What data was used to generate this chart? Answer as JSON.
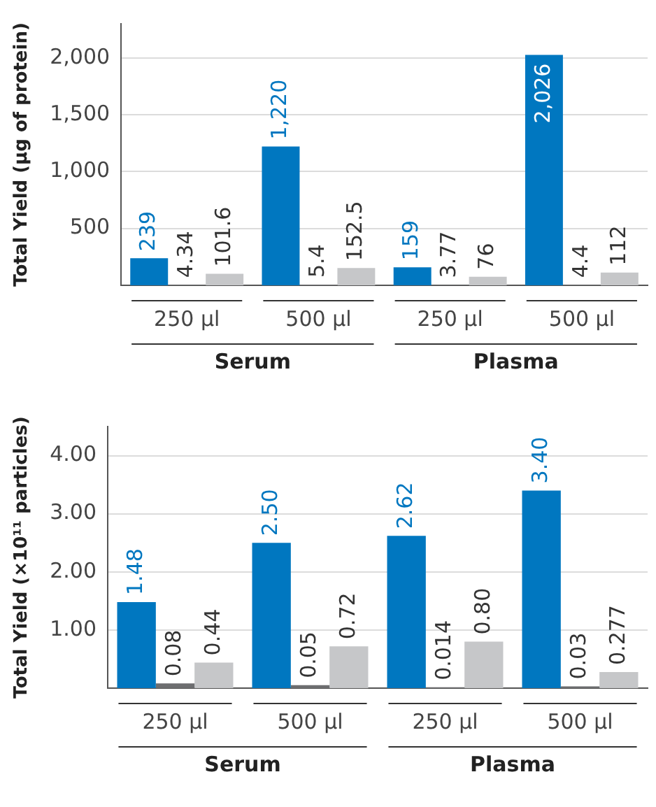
{
  "chart_data": [
    {
      "type": "bar",
      "ylabel": "Total Yield (µg of protein)",
      "categories": [
        "250 µl",
        "500 µl",
        "250 µl",
        "500 µl"
      ],
      "series": [
        {
          "color": "#0077c0",
          "values": [
            239,
            1220,
            159,
            2026
          ],
          "value_labels": [
            "239",
            "1,220",
            "159",
            "2,026"
          ]
        },
        {
          "color": "#6d6e70",
          "values": [
            4.34,
            5.4,
            3.77,
            4.4
          ],
          "value_labels": [
            "4.34",
            "5.4",
            "3.77",
            "4.4"
          ]
        },
        {
          "color": "#c6c7c9",
          "values": [
            101.6,
            152.5,
            76,
            112
          ],
          "value_labels": [
            "101.6",
            "152.5",
            "76",
            "112"
          ]
        }
      ],
      "ylim": [
        0,
        2300
      ],
      "yticks": [
        {
          "value": 500,
          "label": "500"
        },
        {
          "value": 1000,
          "label": "1,000"
        },
        {
          "value": 1500,
          "label": "1,500"
        },
        {
          "value": 2000,
          "label": "2,000"
        }
      ],
      "grid": "y",
      "legend": false,
      "annotations": [
        "Serum",
        "Plasma"
      ]
    },
    {
      "type": "bar",
      "ylabel": "Total Yield (×10¹¹ particles)",
      "categories": [
        "250 µl",
        "500 µl",
        "250 µl",
        "500 µl"
      ],
      "series": [
        {
          "color": "#0077c0",
          "values": [
            1.48,
            2.5,
            2.62,
            3.4
          ],
          "value_labels": [
            "1.48",
            "2.50",
            "2.62",
            "3.40"
          ]
        },
        {
          "color": "#6d6e70",
          "values": [
            0.08,
            0.05,
            0.014,
            0.03
          ],
          "value_labels": [
            "0.08",
            "0.05",
            "0.014",
            "0.03"
          ]
        },
        {
          "color": "#c6c7c9",
          "values": [
            0.44,
            0.72,
            0.8,
            0.277
          ],
          "value_labels": [
            "0.44",
            "0.72",
            "0.80",
            "0.277"
          ]
        }
      ],
      "ylim": [
        0,
        4.5
      ],
      "yticks": [
        {
          "value": 1,
          "label": "1.00"
        },
        {
          "value": 2,
          "label": "2.00"
        },
        {
          "value": 3,
          "label": "3.00"
        },
        {
          "value": 4,
          "label": "4.00"
        }
      ],
      "grid": "y",
      "legend": false,
      "annotations": [
        "Serum",
        "Plasma"
      ]
    }
  ]
}
